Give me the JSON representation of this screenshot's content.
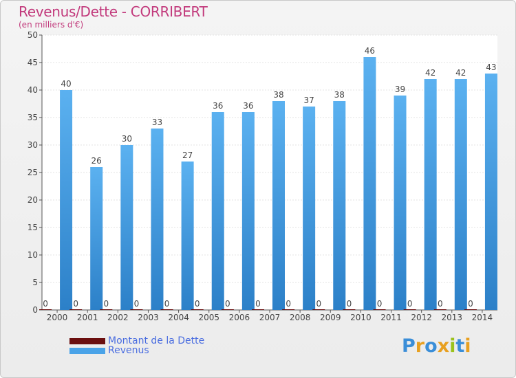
{
  "header": {
    "title": "Revenus/Dette - CORRIBERT",
    "subtitle": "(en milliers d'€)"
  },
  "legend": {
    "debt": {
      "label": "Montant de la Dette",
      "color": "#6b0f0f"
    },
    "revenue": {
      "label": "Revenus",
      "color": "#4aa3e8"
    }
  },
  "logo": {
    "text": "Proxiti"
  },
  "chart_data": {
    "type": "bar",
    "title": "Revenus/Dette - CORRIBERT",
    "ylabel": "(en milliers d'€)",
    "ylim": [
      0,
      50
    ],
    "yticks": [
      0,
      5,
      10,
      15,
      20,
      25,
      30,
      35,
      40,
      45,
      50
    ],
    "categories": [
      "2000",
      "2001",
      "2002",
      "2003",
      "2004",
      "2005",
      "2006",
      "2007",
      "2008",
      "2009",
      "2010",
      "2011",
      "2012",
      "2013",
      "2014"
    ],
    "series": [
      {
        "name": "Montant de la Dette",
        "color": "#6b0f0f",
        "values": [
          0,
          0,
          0,
          0,
          0,
          0,
          0,
          0,
          0,
          0,
          0,
          0,
          0,
          0,
          0
        ]
      },
      {
        "name": "Revenus",
        "color": "#4aa3e8",
        "values": [
          40,
          26,
          30,
          33,
          27,
          36,
          36,
          38,
          37,
          38,
          46,
          39,
          42,
          42,
          43
        ]
      }
    ],
    "grid": true,
    "legend_position": "bottom-left"
  }
}
